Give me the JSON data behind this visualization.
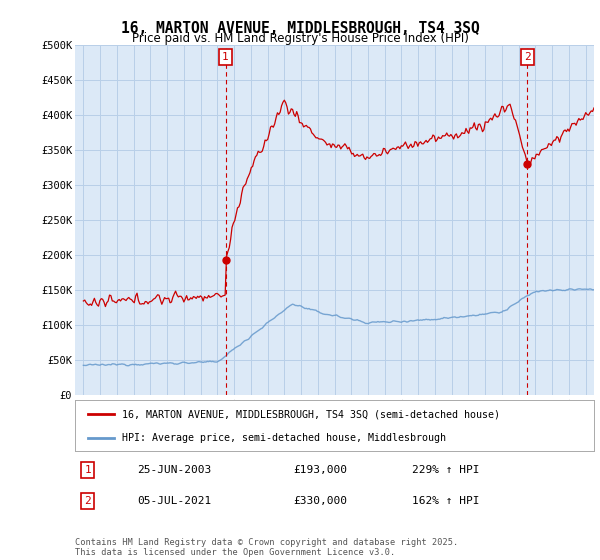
{
  "title": "16, MARTON AVENUE, MIDDLESBROUGH, TS4 3SQ",
  "subtitle": "Price paid vs. HM Land Registry's House Price Index (HPI)",
  "red_label": "16, MARTON AVENUE, MIDDLESBROUGH, TS4 3SQ (semi-detached house)",
  "blue_label": "HPI: Average price, semi-detached house, Middlesbrough",
  "annotation1_label": "1",
  "annotation1_date": "25-JUN-2003",
  "annotation1_price": "£193,000",
  "annotation1_hpi": "229% ↑ HPI",
  "annotation1_year": 2003.49,
  "annotation2_label": "2",
  "annotation2_date": "05-JUL-2021",
  "annotation2_price": "£330,000",
  "annotation2_hpi": "162% ↑ HPI",
  "annotation2_year": 2021.51,
  "footer": "Contains HM Land Registry data © Crown copyright and database right 2025.\nThis data is licensed under the Open Government Licence v3.0.",
  "ylim": [
    0,
    500000
  ],
  "xlim_start": 1994.5,
  "xlim_end": 2025.5,
  "red_color": "#cc0000",
  "blue_color": "#6699cc",
  "dashed_color": "#cc0000",
  "background_color": "#dce9f7",
  "grid_color": "#b8cfe8",
  "fig_background": "#ffffff"
}
